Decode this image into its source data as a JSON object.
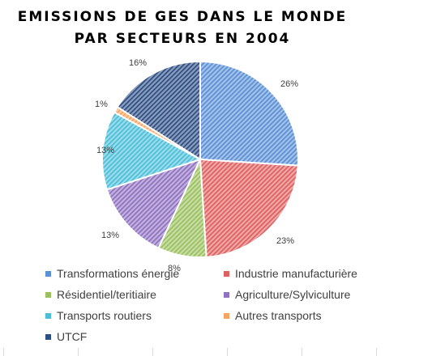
{
  "chart_data": {
    "type": "pie",
    "title_line1": "EMISSIONS DE GES DANS LE MONDE",
    "title_line2": "PAR SECTEURS EN 2004",
    "categories": [
      "Transformations énergie",
      "Industrie manufacturière",
      "Résidentiel/teritiaire",
      "Agriculture/Sylviculture",
      "Transports routiers",
      "Autres transports",
      "UTCF"
    ],
    "values": [
      26,
      23,
      8,
      13,
      13,
      1,
      16
    ],
    "labels": [
      "26%",
      "23%",
      "8%",
      "13%",
      "13%",
      "1%",
      "16%"
    ],
    "colors": [
      "#5b8fd6",
      "#e06060",
      "#9bc15e",
      "#8f72c1",
      "#4bbfd8",
      "#f6a460",
      "#2e4f84"
    ],
    "legend_position": "bottom"
  }
}
